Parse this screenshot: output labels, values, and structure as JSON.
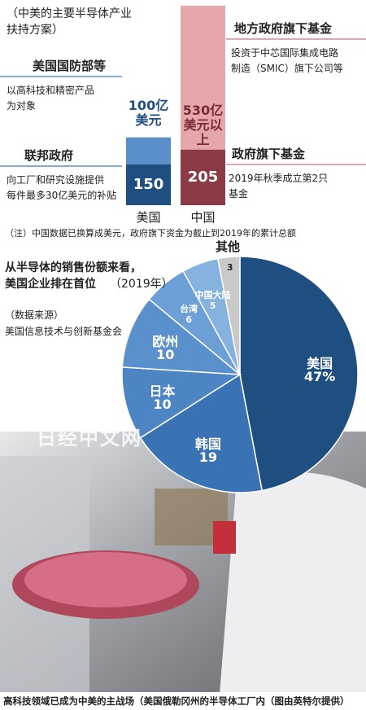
{
  "chart_data": [
    {
      "type": "stacked-bar",
      "title": [
        "（中美的主要半导体产业",
        "扶持方案）"
      ],
      "categories": [
        "美国",
        "中国"
      ],
      "series": [
        {
          "labels": [
            "联邦政府",
            "政府旗下基金"
          ],
          "notes": [
            [
              "向工厂和研究设施提供",
              "每件最多30亿美元的补贴"
            ],
            [
              "2019年秋季成立第2只",
              "基金"
            ]
          ],
          "colors": [
            "#1f4e80",
            "#8b3a46"
          ],
          "values": [
            150,
            205
          ]
        },
        {
          "labels": [
            "美国国防部等",
            "地方政府旗下基金"
          ],
          "notes": [
            [
              "以高科技和精密产品",
              "为对象"
            ],
            [
              "投资于中芯国际集成电路",
              "制造（SMIC）旗下公司等"
            ]
          ],
          "colors": [
            "#5b8fc9",
            "#e6a7ab"
          ],
          "values": [
            100,
            530
          ],
          "value_labels": [
            "100亿美元",
            "530亿美元以上"
          ]
        }
      ],
      "note": "（注）中国数据已换算成美元，政府旗下资金为截止到2019年的累计总额"
    },
    {
      "type": "pie",
      "title": [
        "从半导体的销售份额来看，",
        "美国企业排在首位"
      ],
      "subtitle": "（2019年）",
      "source": [
        "（数据来源）",
        "美国信息技术与创新基金会"
      ],
      "categories": [
        "美国",
        "韩国",
        "日本",
        "欧州",
        "台湾",
        "中国大陆",
        "其他"
      ],
      "values": [
        47,
        19,
        10,
        10,
        6,
        5,
        3
      ],
      "value_labels": [
        "47%",
        "19",
        "10",
        "10",
        "6",
        "5",
        "3"
      ],
      "colors": [
        "#1f4e80",
        "#3a73b3",
        "#4c84c4",
        "#5a91cd",
        "#6c9fd6",
        "#86b2e0",
        "#c9c9c9"
      ]
    }
  ],
  "watermark": "日经中文网",
  "caption": "高科技领域已成为中美的主战场（美国俄勒冈州的半导体工厂内（图由英特尔提供）"
}
